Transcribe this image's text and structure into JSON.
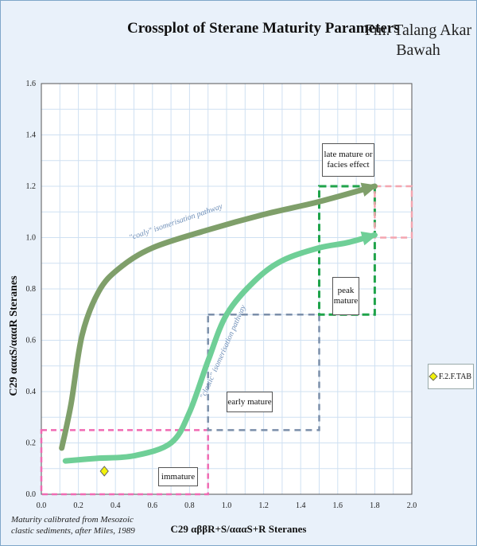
{
  "header": {
    "title": "Crossplot of Sterane Maturity Parameters",
    "formation_line1": "Fm. Talang Akar",
    "formation_line2": "Bawah"
  },
  "footnote": "Maturity calibrated from Mesozoic clastic sediments, after Miles, 1989",
  "legend": {
    "label": "F.2.F.TAB"
  },
  "colors": {
    "coaly_path": "#7f9f6a",
    "clastic_path": "#6fcf97",
    "immature_zone": "#f06ab3",
    "early_mature_zone": "#7b8faa",
    "peak_mature_zone": "#1fa34a",
    "late_mature_zone": "#f4a6b0",
    "sample_marker": "#f2f20a"
  },
  "chart_data": {
    "type": "scatter",
    "title": "Crossplot of Sterane Maturity Parameters",
    "xlabel": "C29 αββR+S/αααS+R Steranes",
    "ylabel": "C29 αααS/αααR Steranes",
    "xlim": [
      0.0,
      2.0
    ],
    "ylim": [
      0.0,
      1.6
    ],
    "x_ticks": [
      "0.0",
      "0.2",
      "0.4",
      "0.6",
      "0.8",
      "1.0",
      "1.2",
      "1.4",
      "1.6",
      "1.8",
      "2.0"
    ],
    "y_ticks": [
      "0.0",
      "0.2",
      "0.4",
      "0.6",
      "0.8",
      "1.0",
      "1.2",
      "1.4",
      "1.6"
    ],
    "grid": true,
    "legend_position": "right",
    "series": [
      {
        "name": "F.2.F.TAB",
        "points": [
          {
            "x": 0.34,
            "y": 0.09
          }
        ]
      }
    ],
    "zones": [
      {
        "label": "immature",
        "x": [
          0.0,
          0.9
        ],
        "y": [
          0.0,
          0.25
        ]
      },
      {
        "label": "early mature",
        "x": [
          0.9,
          1.5
        ],
        "y": [
          0.25,
          0.7
        ]
      },
      {
        "label": "peak mature",
        "x": [
          1.5,
          1.8
        ],
        "y": [
          0.7,
          1.2
        ]
      },
      {
        "label": "late mature or facies effect",
        "x": [
          1.8,
          2.0
        ],
        "y": [
          1.0,
          1.2
        ]
      }
    ],
    "pathways": [
      {
        "label": "\"coaly\" isomerisation pathway",
        "points": [
          [
            0.11,
            0.18
          ],
          [
            0.16,
            0.35
          ],
          [
            0.22,
            0.62
          ],
          [
            0.31,
            0.79
          ],
          [
            0.42,
            0.88
          ],
          [
            0.6,
            0.96
          ],
          [
            0.9,
            1.03
          ],
          [
            1.2,
            1.09
          ],
          [
            1.5,
            1.14
          ],
          [
            1.8,
            1.2
          ]
        ]
      },
      {
        "label": "\"clastic\" isomerisation pathway",
        "points": [
          [
            0.13,
            0.13
          ],
          [
            0.3,
            0.14
          ],
          [
            0.5,
            0.15
          ],
          [
            0.7,
            0.2
          ],
          [
            0.8,
            0.32
          ],
          [
            0.9,
            0.52
          ],
          [
            1.0,
            0.7
          ],
          [
            1.15,
            0.83
          ],
          [
            1.3,
            0.91
          ],
          [
            1.5,
            0.96
          ],
          [
            1.65,
            0.98
          ],
          [
            1.8,
            1.01
          ]
        ]
      }
    ],
    "zone_box_labels": [
      {
        "text": "late mature or facies effect"
      },
      {
        "text": "peak mature"
      },
      {
        "text": "early mature"
      },
      {
        "text": "immature"
      }
    ]
  }
}
